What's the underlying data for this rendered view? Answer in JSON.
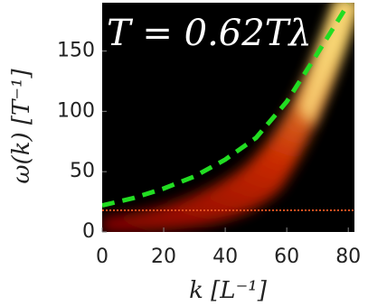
{
  "chart_data": {
    "type": "line",
    "annotation": "T = 0.62Tλ",
    "xlabel": "k [L⁻¹]",
    "ylabel": "ω(k) [T⁻¹]",
    "x": [
      0,
      10,
      20,
      30,
      40,
      50,
      60,
      70,
      80
    ],
    "series": [
      {
        "color": "#22dd22",
        "values": [
          22,
          28,
          36,
          46,
          60,
          78,
          108,
          148,
          189
        ]
      }
    ],
    "xlim": [
      0,
      82
    ],
    "ylim": [
      0,
      190
    ],
    "xticks": [
      0,
      20,
      40,
      60,
      80
    ],
    "yticks": [
      0,
      50,
      100,
      150
    ]
  }
}
